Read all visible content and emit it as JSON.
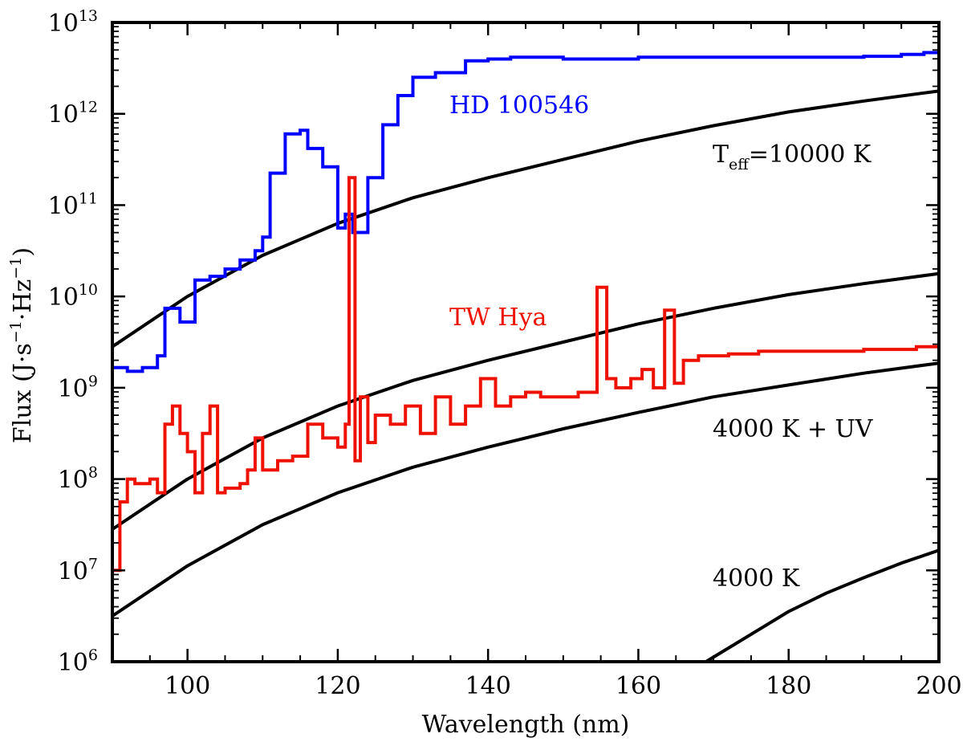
{
  "chart_data": {
    "type": "line",
    "title": "",
    "xlabel": "Wavelength (nm)",
    "ylabel_parts": [
      "Flux (J",
      "·s",
      "−1",
      "·Hz",
      "−1",
      ")"
    ],
    "xlim": [
      90,
      200
    ],
    "ylim_log10": [
      6,
      13
    ],
    "x_ticks": [
      100,
      120,
      140,
      160,
      180,
      200
    ],
    "y_ticks_exp": [
      6,
      7,
      8,
      9,
      10,
      11,
      12,
      13
    ],
    "y_tick_base": "10",
    "y_tick_exponents": [
      "6",
      "7",
      "8",
      "9",
      "10",
      "11",
      "12",
      "13"
    ],
    "grid": false,
    "annotations": {
      "hd": {
        "text": "HD 100546",
        "color": "#0000ff"
      },
      "tw": {
        "text": "TW Hya",
        "color": "#ee1100"
      },
      "teff": {
        "main": "T",
        "sub": "eff",
        "rest": "=10000 K"
      },
      "uv": {
        "text": "4000 K + UV"
      },
      "k4000": {
        "text": "4000 K"
      }
    },
    "model_curves": [
      {
        "name": "T_eff=10000 K",
        "color": "#000000",
        "x": [
          90,
          100,
          110,
          120,
          130,
          140,
          150,
          160,
          170,
          180,
          190,
          200
        ],
        "log10_y": [
          9.45,
          10.0,
          10.45,
          10.8,
          11.08,
          11.3,
          11.5,
          11.7,
          11.87,
          12.02,
          12.14,
          12.25
        ]
      },
      {
        "name": "4000 K + UV (upper)",
        "color": "#000000",
        "x": [
          90,
          100,
          110,
          120,
          130,
          140,
          150,
          160,
          170,
          180,
          190,
          200
        ],
        "log10_y": [
          7.45,
          8.0,
          8.45,
          8.8,
          9.08,
          9.3,
          9.5,
          9.7,
          9.87,
          10.02,
          10.14,
          10.25
        ]
      },
      {
        "name": "4000 K + UV (lower)",
        "color": "#000000",
        "x": [
          90,
          100,
          110,
          120,
          130,
          140,
          150,
          160,
          170,
          180,
          190,
          200
        ],
        "log10_y": [
          6.5,
          7.05,
          7.5,
          7.85,
          8.13,
          8.35,
          8.55,
          8.73,
          8.9,
          9.03,
          9.16,
          9.27
        ]
      },
      {
        "name": "4000 K",
        "color": "#000000",
        "x": [
          169,
          175,
          180,
          185,
          190,
          195,
          200
        ],
        "log10_y": [
          6.0,
          6.3,
          6.55,
          6.75,
          6.92,
          7.08,
          7.22
        ]
      }
    ],
    "series": [
      {
        "name": "HD 100546",
        "color": "#0000ff",
        "step": true,
        "x": [
          90,
          92,
          94,
          96,
          97,
          99,
          101,
          103,
          105,
          107,
          109,
          110,
          111,
          113,
          115,
          116,
          118,
          120,
          121,
          122,
          124,
          126,
          128,
          130,
          133,
          137,
          140,
          143,
          146,
          150,
          155,
          160,
          165,
          170,
          180,
          190,
          195,
          198,
          200
        ],
        "log10_y": [
          9.22,
          9.18,
          9.22,
          9.35,
          9.87,
          9.72,
          10.18,
          10.22,
          10.3,
          10.4,
          10.5,
          10.65,
          11.35,
          11.78,
          11.82,
          11.62,
          11.42,
          10.75,
          10.9,
          10.7,
          11.3,
          11.88,
          12.2,
          12.4,
          12.45,
          12.58,
          12.6,
          12.62,
          12.62,
          12.6,
          12.6,
          12.62,
          12.62,
          12.62,
          12.62,
          12.63,
          12.65,
          12.67,
          12.67
        ]
      },
      {
        "name": "TW Hya",
        "color": "#ee1100",
        "step": true,
        "x": [
          90,
          91,
          92,
          93,
          95,
          96,
          97,
          98,
          99,
          100,
          101,
          102,
          103,
          104,
          105,
          107,
          108,
          109,
          110,
          112,
          114,
          116,
          118,
          120,
          121,
          121.5,
          122.3,
          123,
          124,
          125,
          127,
          129,
          131,
          133,
          135,
          137,
          139,
          141,
          143,
          145,
          147,
          150,
          152,
          154.5,
          155.8,
          157,
          159,
          160.5,
          162,
          163.5,
          164.8,
          166,
          168,
          172,
          176,
          180,
          190,
          197,
          200
        ],
        "log10_y": [
          7.0,
          7.75,
          8.0,
          7.95,
          8.0,
          7.85,
          8.6,
          8.8,
          8.5,
          8.3,
          7.85,
          8.5,
          8.8,
          7.85,
          7.9,
          7.95,
          8.1,
          8.45,
          8.1,
          8.2,
          8.25,
          8.6,
          8.45,
          8.35,
          8.6,
          11.3,
          8.2,
          8.9,
          8.4,
          8.7,
          8.6,
          8.8,
          8.5,
          8.9,
          8.6,
          8.8,
          9.1,
          8.8,
          8.9,
          8.95,
          8.9,
          8.9,
          8.95,
          10.1,
          9.1,
          9.0,
          9.1,
          9.2,
          9.0,
          9.85,
          9.05,
          9.3,
          9.35,
          9.37,
          9.4,
          9.4,
          9.42,
          9.45,
          9.45
        ]
      }
    ]
  }
}
